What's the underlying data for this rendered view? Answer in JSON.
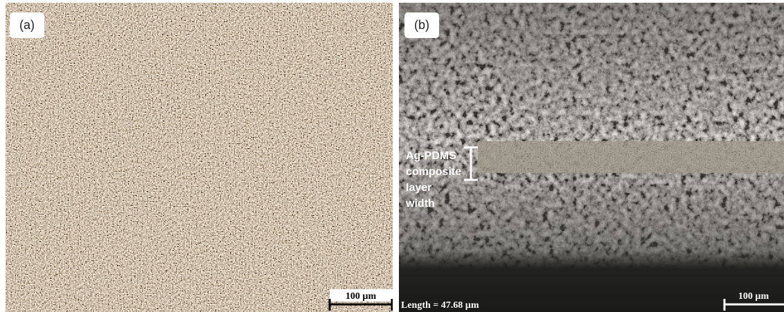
{
  "panels": [
    {
      "label": "(a)",
      "scale_bar": "100 µm"
    },
    {
      "label": "(b)",
      "scale_bar": "100 µm",
      "annotation": [
        "Ag-PDMS",
        "composite",
        "layer",
        "width"
      ],
      "measurement": "Length = 47.68 µm"
    }
  ]
}
